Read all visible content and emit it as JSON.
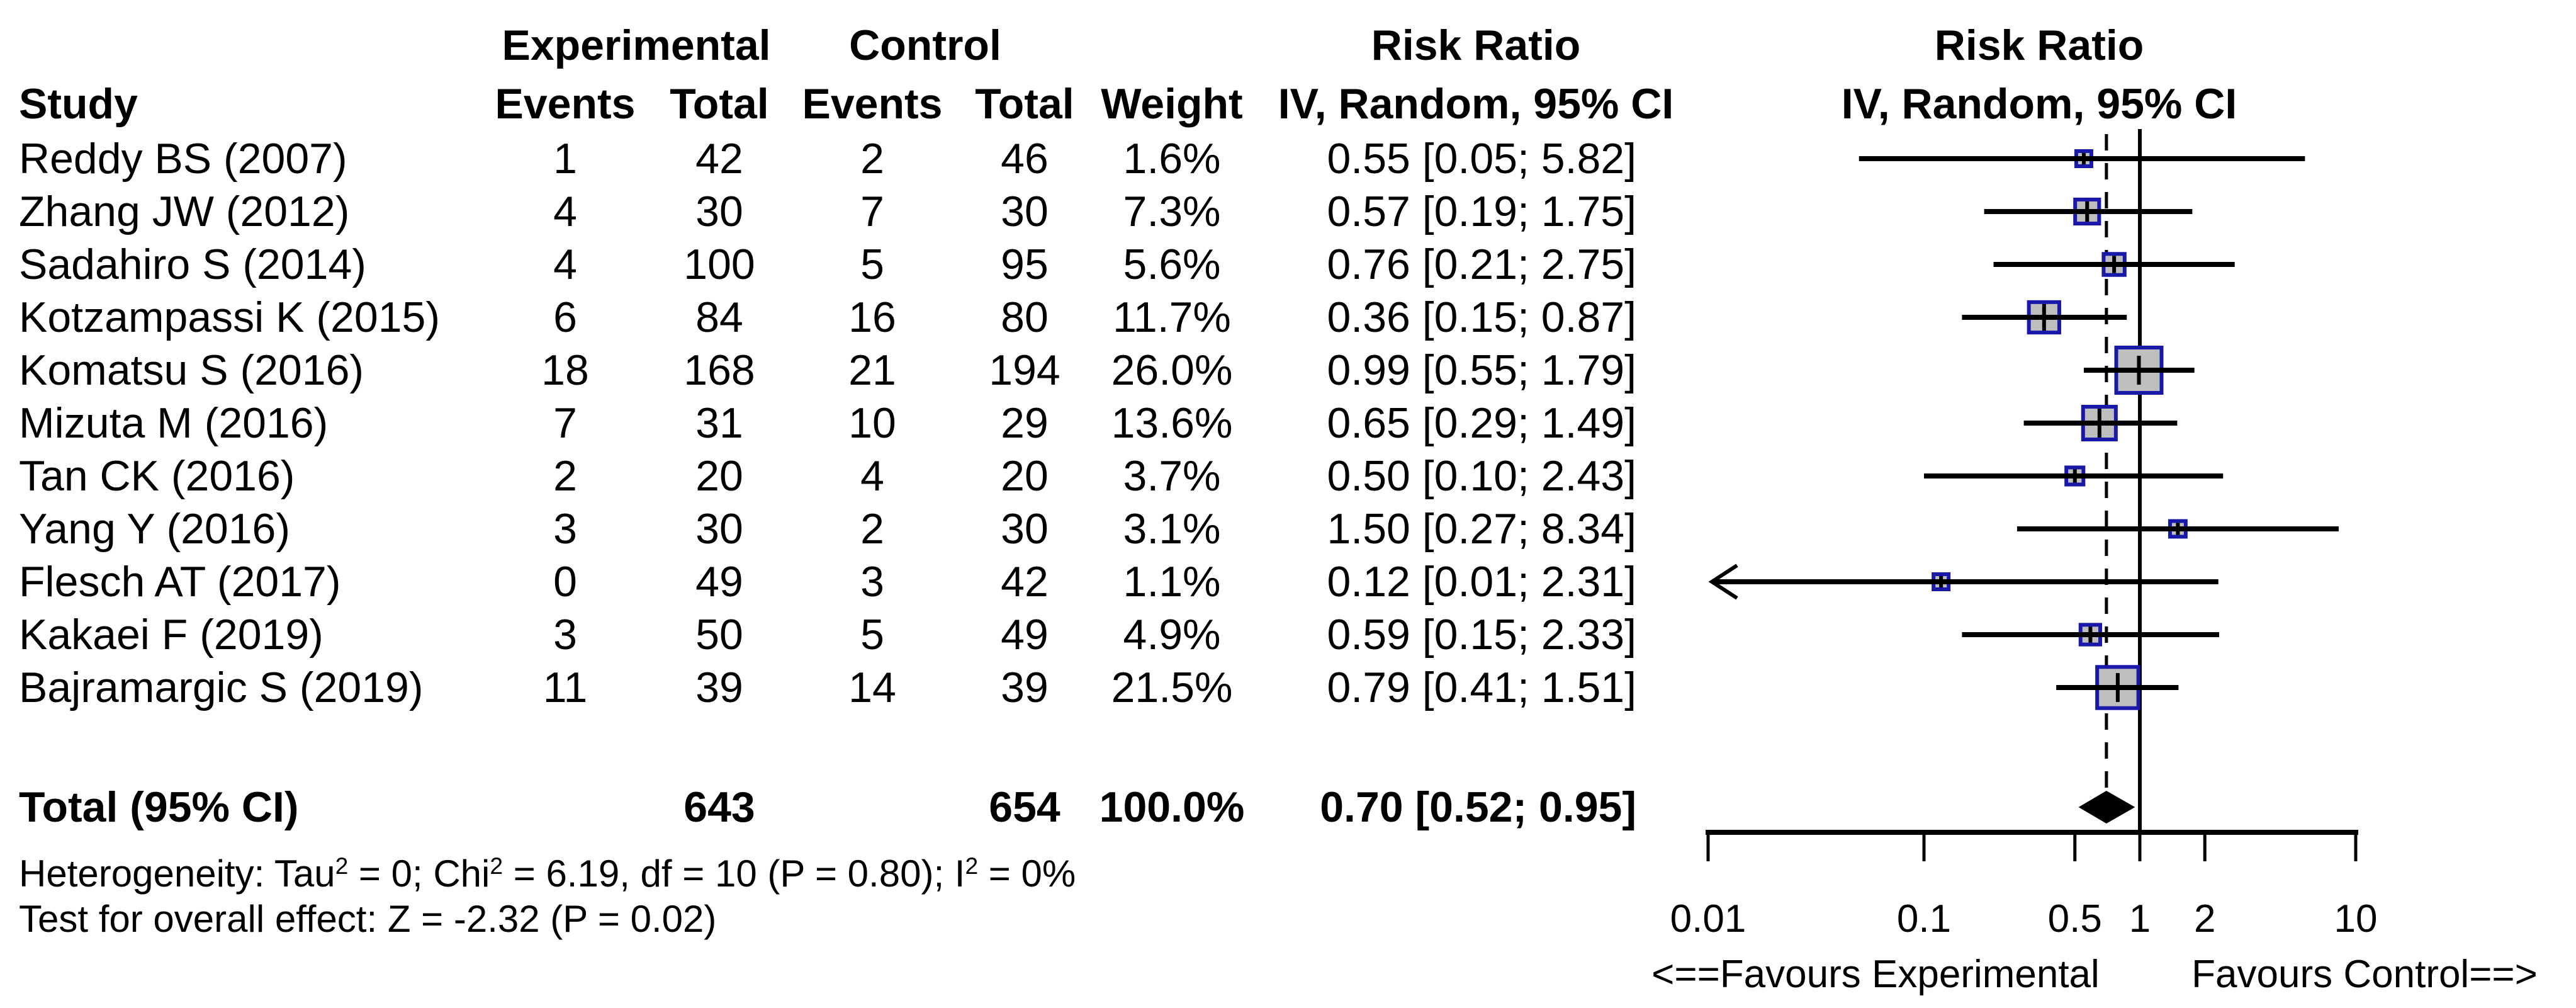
{
  "table": {
    "group_headers": {
      "experimental": "Experimental",
      "control": "Control",
      "risk_ratio": "Risk Ratio",
      "risk_ratio_plot": "Risk Ratio"
    },
    "columns": {
      "study": "Study",
      "events_exp": "Events",
      "total_exp": "Total",
      "events_ctrl": "Events",
      "total_ctrl": "Total",
      "weight": "Weight",
      "model": "IV, Random, 95% CI",
      "model_plot": "IV, Random, 95% CI"
    }
  },
  "total_row": {
    "label": "Total (95% CI)",
    "total_exp": "643",
    "total_ctrl": "654",
    "weight": "100.0%",
    "rr_label": "0.70 [0.52; 0.95]"
  },
  "footer": {
    "heterogeneity_parts": [
      {
        "text": "Heterogeneity: Tau"
      },
      {
        "sup": "2"
      },
      {
        "text": " = 0; Chi"
      },
      {
        "sup": "2"
      },
      {
        "text": " = 6.19, df = 10 (P = 0.80); I"
      },
      {
        "sup": "2"
      },
      {
        "text": " = 0%"
      }
    ],
    "overall_effect": "Test for overall effect: Z = -2.32 (P = 0.02)"
  },
  "axis": {
    "favours_left": "<==Favours Experimental",
    "favours_right": "Favours Control==>"
  },
  "chart_data": {
    "type": "forest",
    "effect_measure": "Risk Ratio",
    "model": "IV, Random, 95% CI",
    "scale": "log",
    "max_weight": 26.0,
    "studies": [
      {
        "name": "Reddy BS (2007)",
        "events_exp": "1",
        "total_exp": "42",
        "events_ctrl": "2",
        "total_ctrl": "46",
        "weight": "1.6%",
        "weight_value": 1.6,
        "rr": 0.55,
        "ci_low": 0.05,
        "ci_high": 5.82,
        "rr_label": "0.55 [0.05; 5.82]",
        "low_truncated": false
      },
      {
        "name": "Zhang JW (2012)",
        "events_exp": "4",
        "total_exp": "30",
        "events_ctrl": "7",
        "total_ctrl": "30",
        "weight": "7.3%",
        "weight_value": 7.3,
        "rr": 0.57,
        "ci_low": 0.19,
        "ci_high": 1.75,
        "rr_label": "0.57 [0.19; 1.75]",
        "low_truncated": false
      },
      {
        "name": "Sadahiro S (2014)",
        "events_exp": "4",
        "total_exp": "100",
        "events_ctrl": "5",
        "total_ctrl": "95",
        "weight": "5.6%",
        "weight_value": 5.6,
        "rr": 0.76,
        "ci_low": 0.21,
        "ci_high": 2.75,
        "rr_label": "0.76 [0.21; 2.75]",
        "low_truncated": false
      },
      {
        "name": "Kotzampassi K (2015)",
        "events_exp": "6",
        "total_exp": "84",
        "events_ctrl": "16",
        "total_ctrl": "80",
        "weight": "11.7%",
        "weight_value": 11.7,
        "rr": 0.36,
        "ci_low": 0.15,
        "ci_high": 0.87,
        "rr_label": "0.36 [0.15; 0.87]",
        "low_truncated": false
      },
      {
        "name": "Komatsu S (2016)",
        "events_exp": "18",
        "total_exp": "168",
        "events_ctrl": "21",
        "total_ctrl": "194",
        "weight": "26.0%",
        "weight_value": 26.0,
        "rr": 0.99,
        "ci_low": 0.55,
        "ci_high": 1.79,
        "rr_label": "0.99 [0.55; 1.79]",
        "low_truncated": false
      },
      {
        "name": "Mizuta M (2016)",
        "events_exp": "7",
        "total_exp": "31",
        "events_ctrl": "10",
        "total_ctrl": "29",
        "weight": "13.6%",
        "weight_value": 13.6,
        "rr": 0.65,
        "ci_low": 0.29,
        "ci_high": 1.49,
        "rr_label": "0.65 [0.29; 1.49]",
        "low_truncated": false
      },
      {
        "name": "Tan CK (2016)",
        "events_exp": "2",
        "total_exp": "20",
        "events_ctrl": "4",
        "total_ctrl": "20",
        "weight": "3.7%",
        "weight_value": 3.7,
        "rr": 0.5,
        "ci_low": 0.1,
        "ci_high": 2.43,
        "rr_label": "0.50 [0.10; 2.43]",
        "low_truncated": false
      },
      {
        "name": "Yang Y (2016)",
        "events_exp": "3",
        "total_exp": "30",
        "events_ctrl": "2",
        "total_ctrl": "30",
        "weight": "3.1%",
        "weight_value": 3.1,
        "rr": 1.5,
        "ci_low": 0.27,
        "ci_high": 8.34,
        "rr_label": "1.50 [0.27; 8.34]",
        "low_truncated": false
      },
      {
        "name": "Flesch AT (2017)",
        "events_exp": "0",
        "total_exp": "49",
        "events_ctrl": "3",
        "total_ctrl": "42",
        "weight": "1.1%",
        "weight_value": 1.1,
        "rr": 0.12,
        "ci_low": 0.01,
        "ci_high": 2.31,
        "rr_label": "0.12 [0.01; 2.31]",
        "low_truncated": true
      },
      {
        "name": "Kakaei F (2019)",
        "events_exp": "3",
        "total_exp": "50",
        "events_ctrl": "5",
        "total_ctrl": "49",
        "weight": "4.9%",
        "weight_value": 4.9,
        "rr": 0.59,
        "ci_low": 0.15,
        "ci_high": 2.33,
        "rr_label": "0.59 [0.15; 2.33]",
        "low_truncated": false
      },
      {
        "name": "Bajramargic S (2019)",
        "events_exp": "11",
        "total_exp": "39",
        "events_ctrl": "14",
        "total_ctrl": "39",
        "weight": "21.5%",
        "weight_value": 21.5,
        "rr": 0.79,
        "ci_low": 0.41,
        "ci_high": 1.51,
        "rr_label": "0.79 [0.41; 1.51]",
        "low_truncated": false
      }
    ],
    "total": {
      "rr": 0.7,
      "ci_low": 0.52,
      "ci_high": 0.95
    },
    "null_line": 1,
    "pooled_line": 0.7,
    "axis": {
      "min": 0.01,
      "max": 10,
      "ticks": [
        0.01,
        0.1,
        0.5,
        1,
        2,
        10
      ],
      "tick_labels": [
        "0.01",
        "0.1",
        "0.5",
        "1",
        "2",
        "10"
      ]
    },
    "colors": {
      "square_fill": "#bebebe",
      "square_border": "#1a18a8",
      "line": "#000000",
      "diamond": "#000000"
    }
  }
}
